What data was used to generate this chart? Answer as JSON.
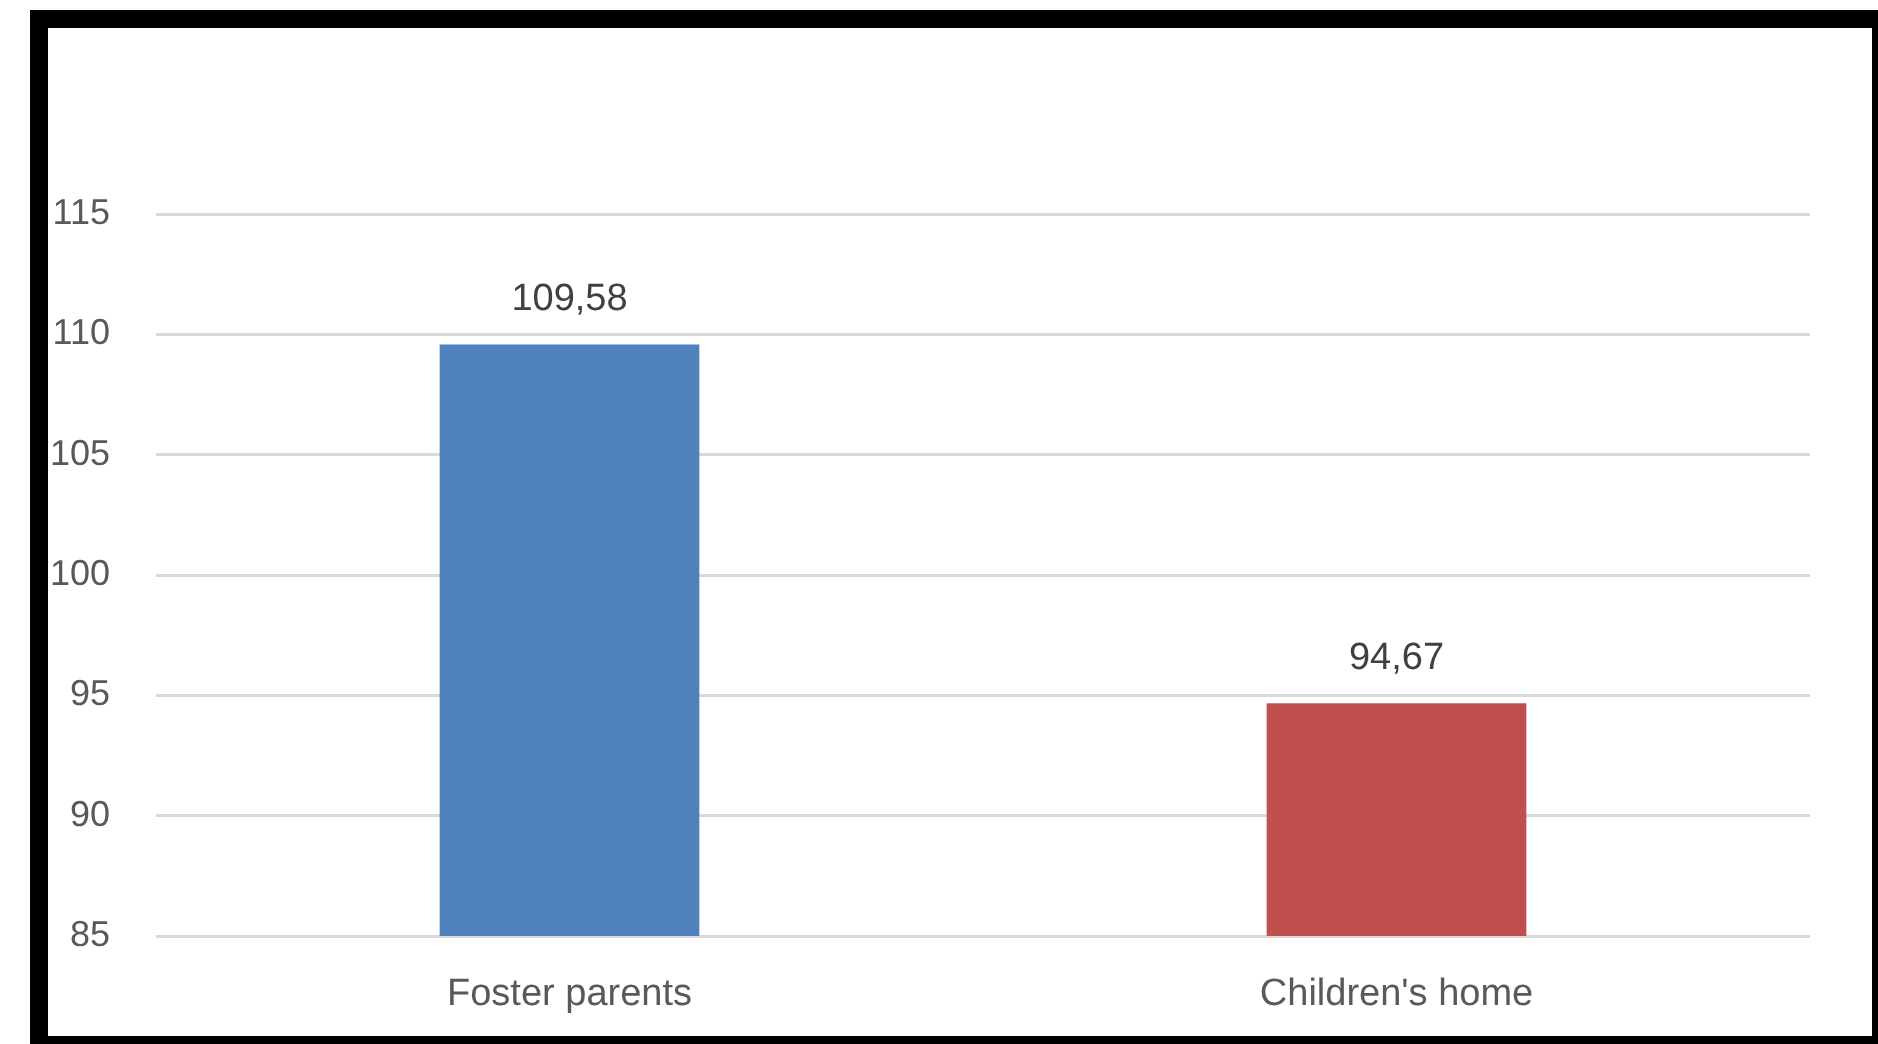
{
  "chart_data": {
    "type": "bar",
    "categories": [
      "Foster parents",
      "Children's home"
    ],
    "values": [
      109.58,
      94.67
    ],
    "colors": [
      "#4f81bd",
      "#c0504d"
    ],
    "value_labels": [
      "109,58",
      "94,67"
    ],
    "ylim": [
      85,
      115
    ],
    "yticks": [
      85,
      90,
      95,
      100,
      105,
      110,
      115
    ],
    "grid": "y"
  }
}
